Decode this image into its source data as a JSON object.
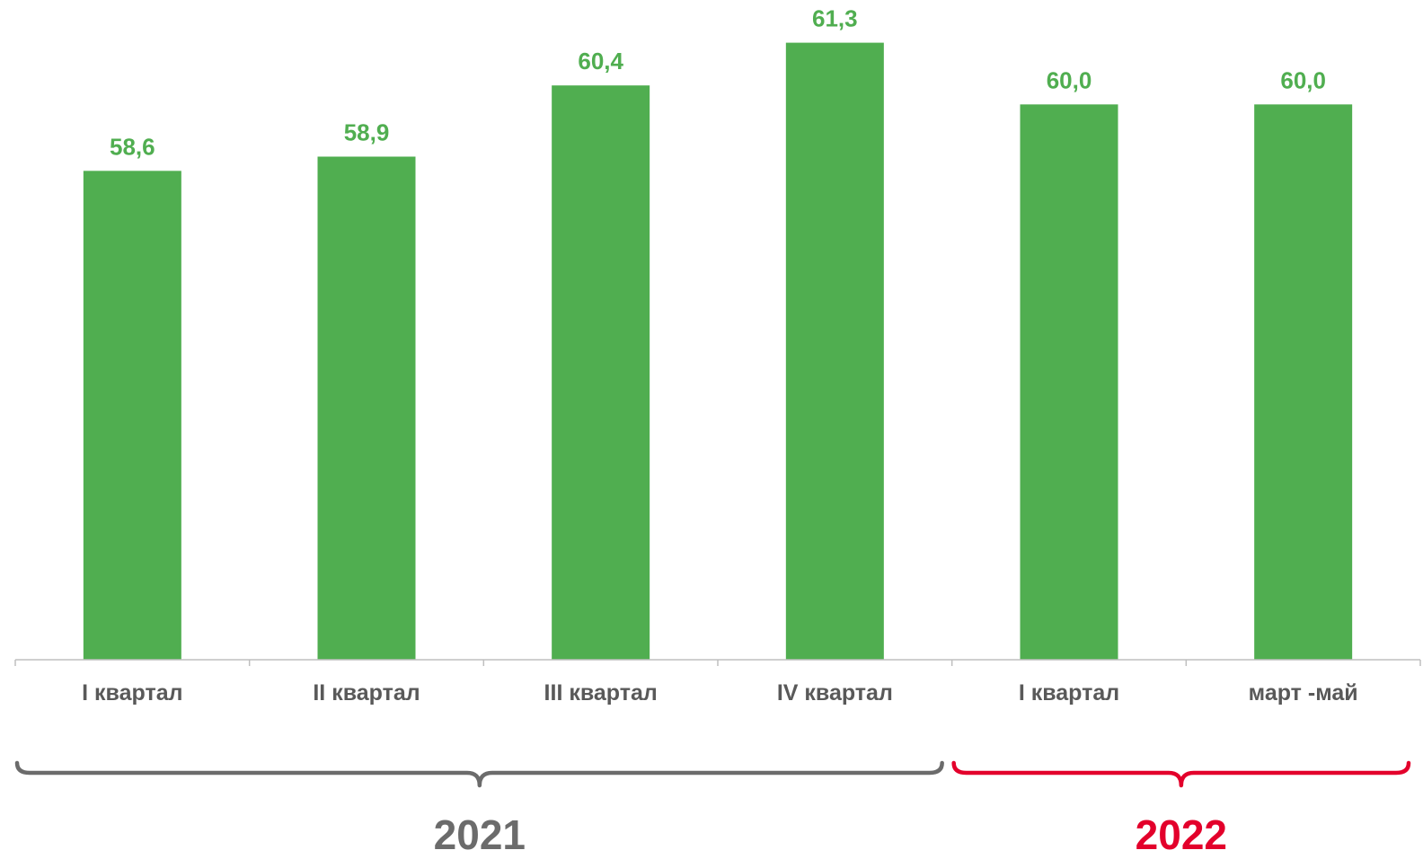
{
  "chart_data": {
    "type": "bar",
    "categories": [
      "I квартал",
      "II квартал",
      "III квартал",
      "IV квартал",
      "I квартал",
      "март -май"
    ],
    "values": [
      58.6,
      58.9,
      60.4,
      61.3,
      60.0,
      60.0
    ],
    "value_labels": [
      "58,6",
      "58,9",
      "60,4",
      "61,3",
      "60,0",
      "60,0"
    ],
    "title": "",
    "xlabel": "",
    "ylabel": "",
    "ylim": [
      48.3,
      62.2
    ],
    "grid": false,
    "legend": "none",
    "groups": [
      {
        "label": "2021",
        "start": 0,
        "end": 3,
        "color": "#6b6b6b"
      },
      {
        "label": "2022",
        "start": 4,
        "end": 5,
        "color": "#e3002b"
      }
    ]
  },
  "colors": {
    "bar": "#50ae50",
    "value_label": "#50ae50",
    "tick_label": "#595959",
    "axis": "#bfbfbf"
  }
}
